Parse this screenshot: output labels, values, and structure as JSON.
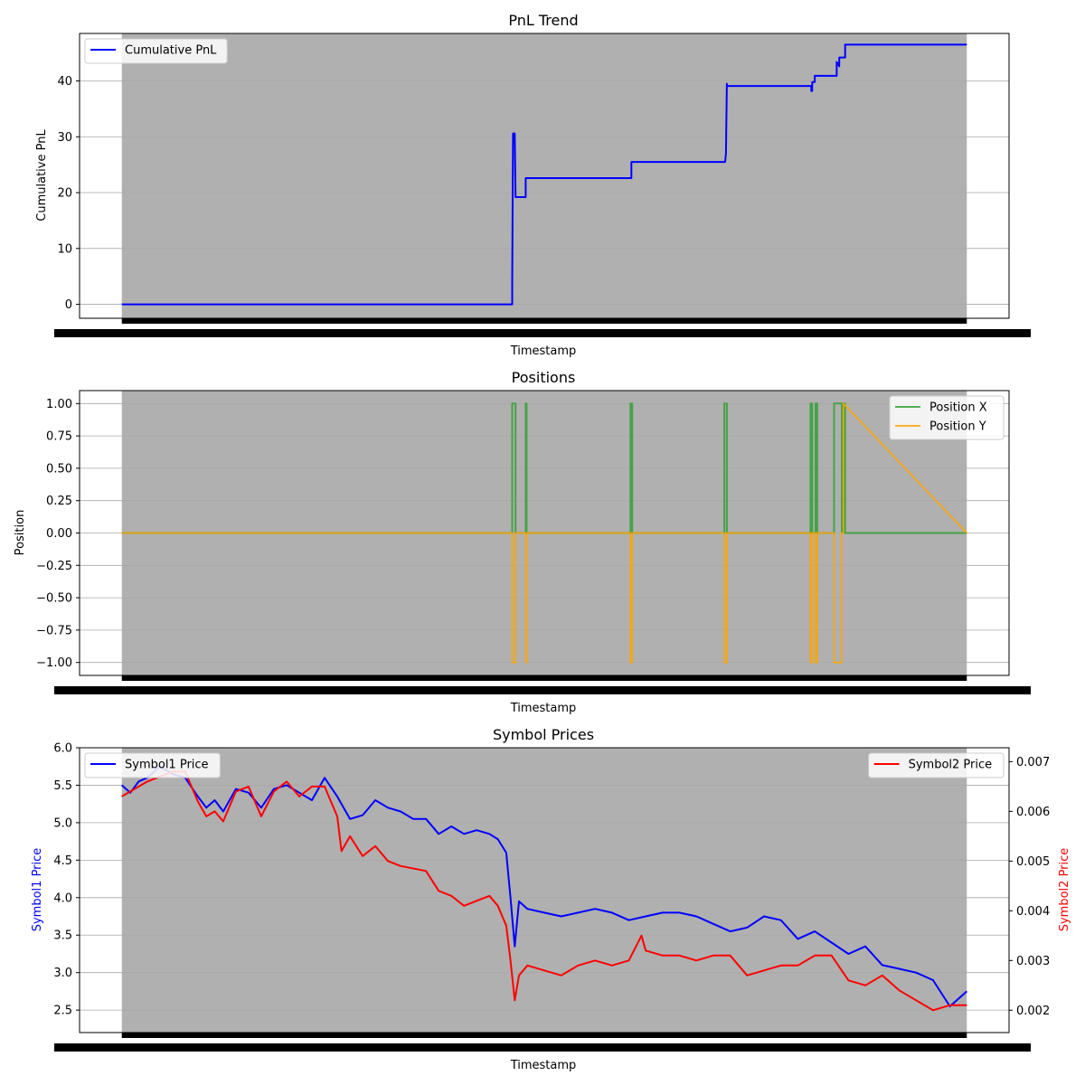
{
  "chart_data": [
    {
      "type": "line",
      "title": "PnL Trend",
      "xlabel": "Timestamp",
      "ylabel": "Cumulative PnL",
      "xlim": [
        -0.05,
        1.05
      ],
      "ylim": [
        -2.5,
        48.5
      ],
      "yticks": [
        0,
        10,
        20,
        30,
        40
      ],
      "ytick_labels": [
        "0",
        "10",
        "20",
        "30",
        "40"
      ],
      "grid": "y",
      "background_band": {
        "color": "#b0b0b0"
      },
      "legend": {
        "placement": "upper-left",
        "entries": [
          {
            "label": "Cumulative PnL",
            "color": "#0000ff"
          }
        ]
      },
      "series": [
        {
          "name": "Cumulative PnL",
          "color": "#0000ff",
          "x": [
            0.0,
            0.462,
            0.462,
            0.463,
            0.463,
            0.465,
            0.465,
            0.466,
            0.466,
            0.478,
            0.478,
            0.603,
            0.603,
            0.714,
            0.715,
            0.716,
            0.716,
            0.728,
            0.731,
            0.816,
            0.816,
            0.817,
            0.817,
            0.82,
            0.82,
            0.825,
            0.825,
            0.846,
            0.846,
            0.849,
            0.849,
            0.853,
            0.853,
            0.856,
            0.856,
            0.859,
            0.859,
            1.0
          ],
          "y": [
            0,
            0,
            4,
            30.6,
            30.6,
            30.6,
            30.6,
            19.2,
            19.2,
            19.2,
            22.6,
            22.6,
            25.5,
            25.5,
            27,
            39.5,
            39.1,
            39.1,
            39.1,
            39.1,
            38.2,
            38.2,
            39.8,
            39.8,
            40.9,
            40.9,
            40.9,
            40.9,
            43.4,
            42.6,
            44.2,
            44.2,
            44.2,
            44.2,
            46.5,
            46.5,
            46.5,
            46.5
          ]
        }
      ]
    },
    {
      "type": "line",
      "title": "Positions",
      "xlabel": "Timestamp",
      "ylabel": "Position",
      "xlim": [
        -0.05,
        1.05
      ],
      "ylim": [
        -1.1,
        1.1
      ],
      "yticks": [
        1.0,
        0.75,
        0.5,
        0.25,
        0.0,
        -0.25,
        -0.5,
        -0.75,
        -1.0
      ],
      "ytick_labels": [
        "1.00",
        "0.75",
        "0.50",
        "0.25",
        "0.00",
        "−0.25",
        "−0.50",
        "−0.75",
        "−1.00"
      ],
      "grid": "y",
      "background_band": {
        "color": "#b0b0b0"
      },
      "legend": {
        "placement": "upper-right",
        "entries": [
          {
            "label": "Position X",
            "color": "#2ca02c"
          },
          {
            "label": "Position Y",
            "color": "#ffa500"
          }
        ]
      },
      "series": [
        {
          "name": "Position X",
          "color": "#2ca02c",
          "x": [
            0.0,
            0.462,
            0.462,
            0.466,
            0.466,
            0.478,
            0.478,
            0.479,
            0.479,
            0.602,
            0.602,
            0.604,
            0.604,
            0.713,
            0.713,
            0.716,
            0.716,
            0.815,
            0.815,
            0.817,
            0.817,
            0.821,
            0.821,
            0.823,
            0.823,
            0.843,
            0.843,
            0.852,
            0.852,
            0.854,
            0.854,
            0.856,
            0.856,
            1.0
          ],
          "y": [
            0,
            0,
            1,
            1,
            0,
            0,
            1,
            1,
            0,
            0,
            1,
            1,
            0,
            0,
            1,
            1,
            0,
            0,
            1,
            1,
            0,
            0,
            1,
            1,
            0,
            0,
            1,
            1,
            0,
            0,
            1,
            1,
            0,
            0
          ]
        },
        {
          "name": "Position Y",
          "color": "#ffa500",
          "x": [
            0.0,
            0.462,
            0.462,
            0.466,
            0.466,
            0.478,
            0.478,
            0.479,
            0.479,
            0.602,
            0.602,
            0.604,
            0.604,
            0.713,
            0.713,
            0.716,
            0.716,
            0.815,
            0.815,
            0.817,
            0.817,
            0.821,
            0.821,
            0.823,
            0.823,
            0.843,
            0.843,
            0.852,
            0.852,
            0.854,
            0.854,
            1.0
          ],
          "y": [
            0,
            0,
            -1,
            -1,
            0,
            0,
            -1,
            -1,
            0,
            0,
            -1,
            -1,
            0,
            0,
            -1,
            -1,
            0,
            0,
            -1,
            -1,
            0,
            0,
            -1,
            -1,
            0,
            0,
            -1,
            -1,
            0,
            0,
            1,
            0
          ]
        }
      ]
    },
    {
      "type": "line",
      "title": "Symbol Prices",
      "xlabel": "Timestamp",
      "ylabel": "Symbol1 Price",
      "ylabel_right": "Symbol2 Price",
      "xlim": [
        -0.05,
        1.05
      ],
      "ylim": [
        2.2,
        6.0
      ],
      "yticks": [
        2.5,
        3.0,
        3.5,
        4.0,
        4.5,
        5.0,
        5.5,
        6.0
      ],
      "ytick_labels": [
        "2.5",
        "3.0",
        "3.5",
        "4.0",
        "4.5",
        "5.0",
        "5.5",
        "6.0"
      ],
      "ylim_right": [
        0.00155,
        0.00728
      ],
      "yticks_right": [
        0.002,
        0.003,
        0.004,
        0.005,
        0.006,
        0.007
      ],
      "ytick_labels_right": [
        "0.002",
        "0.003",
        "0.004",
        "0.005",
        "0.006",
        "0.007"
      ],
      "grid": "y",
      "background_band": {
        "color": "#b0b0b0"
      },
      "legend": [
        {
          "placement": "upper-left",
          "entries": [
            {
              "label": "Symbol1 Price",
              "color": "#0000ff"
            }
          ]
        },
        {
          "placement": "upper-right",
          "entries": [
            {
              "label": "Symbol2 Price",
              "color": "#ff0000"
            }
          ]
        }
      ],
      "series": [
        {
          "name": "Symbol1 Price",
          "axis": "left",
          "color": "#0000ff",
          "x": [
            0.0,
            0.01,
            0.02,
            0.03,
            0.045,
            0.06,
            0.075,
            0.09,
            0.1,
            0.11,
            0.12,
            0.135,
            0.15,
            0.165,
            0.18,
            0.195,
            0.21,
            0.225,
            0.24,
            0.255,
            0.27,
            0.285,
            0.3,
            0.315,
            0.33,
            0.345,
            0.36,
            0.375,
            0.39,
            0.405,
            0.42,
            0.435,
            0.445,
            0.455,
            0.46,
            0.465,
            0.47,
            0.48,
            0.5,
            0.52,
            0.54,
            0.56,
            0.58,
            0.6,
            0.62,
            0.64,
            0.66,
            0.68,
            0.7,
            0.72,
            0.74,
            0.76,
            0.78,
            0.8,
            0.82,
            0.84,
            0.86,
            0.88,
            0.9,
            0.92,
            0.94,
            0.96,
            0.98,
            1.0
          ],
          "y": [
            5.5,
            5.4,
            5.55,
            5.6,
            5.75,
            5.65,
            5.6,
            5.35,
            5.2,
            5.3,
            5.15,
            5.45,
            5.4,
            5.2,
            5.45,
            5.5,
            5.4,
            5.3,
            5.6,
            5.35,
            5.05,
            5.1,
            5.3,
            5.2,
            5.15,
            5.05,
            5.05,
            4.85,
            4.95,
            4.85,
            4.9,
            4.85,
            4.78,
            4.6,
            4.0,
            3.35,
            3.95,
            3.85,
            3.8,
            3.75,
            3.8,
            3.85,
            3.8,
            3.7,
            3.75,
            3.8,
            3.8,
            3.75,
            3.65,
            3.55,
            3.6,
            3.75,
            3.7,
            3.45,
            3.55,
            3.4,
            3.25,
            3.35,
            3.1,
            3.05,
            3.0,
            2.9,
            2.55,
            2.75
          ]
        },
        {
          "name": "Symbol2 Price",
          "axis": "right",
          "color": "#ff0000",
          "x": [
            0.0,
            0.01,
            0.02,
            0.03,
            0.045,
            0.06,
            0.075,
            0.09,
            0.1,
            0.11,
            0.12,
            0.135,
            0.15,
            0.165,
            0.18,
            0.195,
            0.21,
            0.225,
            0.24,
            0.255,
            0.26,
            0.27,
            0.285,
            0.3,
            0.315,
            0.33,
            0.36,
            0.375,
            0.39,
            0.405,
            0.42,
            0.435,
            0.445,
            0.455,
            0.46,
            0.465,
            0.47,
            0.48,
            0.5,
            0.52,
            0.54,
            0.56,
            0.58,
            0.6,
            0.615,
            0.62,
            0.64,
            0.66,
            0.68,
            0.7,
            0.72,
            0.74,
            0.76,
            0.78,
            0.8,
            0.82,
            0.84,
            0.86,
            0.88,
            0.9,
            0.92,
            0.94,
            0.96,
            0.98,
            1.0
          ],
          "y": [
            0.0063,
            0.0064,
            0.0065,
            0.0066,
            0.0067,
            0.0068,
            0.0068,
            0.0062,
            0.0059,
            0.006,
            0.0058,
            0.0064,
            0.0065,
            0.0059,
            0.0064,
            0.0066,
            0.0063,
            0.0065,
            0.0065,
            0.0059,
            0.0052,
            0.0055,
            0.0051,
            0.0053,
            0.005,
            0.0049,
            0.0048,
            0.0044,
            0.0043,
            0.0041,
            0.0042,
            0.0043,
            0.0041,
            0.0037,
            0.003,
            0.0022,
            0.0027,
            0.0029,
            0.0028,
            0.0027,
            0.0029,
            0.003,
            0.0029,
            0.003,
            0.0035,
            0.0032,
            0.0031,
            0.0031,
            0.003,
            0.0031,
            0.0031,
            0.0027,
            0.0028,
            0.0029,
            0.0029,
            0.0031,
            0.0031,
            0.0026,
            0.0025,
            0.0027,
            0.0024,
            0.0022,
            0.002,
            0.0021,
            0.0021
          ]
        }
      ]
    }
  ]
}
